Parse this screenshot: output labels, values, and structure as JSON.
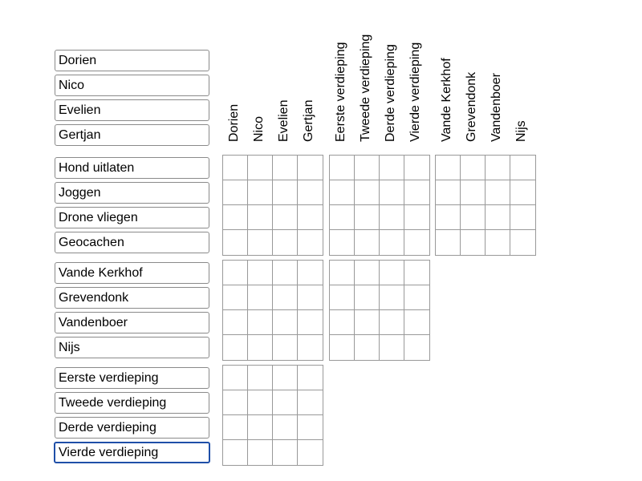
{
  "row_groups": [
    {
      "items": [
        "Dorien",
        "Nico",
        "Evelien",
        "Gertjan"
      ]
    },
    {
      "items": [
        "Hond uitlaten",
        "Joggen",
        "Drone vliegen",
        "Geocachen"
      ]
    },
    {
      "items": [
        "Vande Kerkhof",
        "Grevendonk",
        "Vandenboer",
        "Nijs"
      ]
    },
    {
      "items": [
        "Eerste verdieping",
        "Tweede verdieping",
        "Derde verdieping",
        "Vierde verdieping"
      ]
    }
  ],
  "column_groups": [
    {
      "items": [
        "Dorien",
        "Nico",
        "Evelien",
        "Gertjan"
      ]
    },
    {
      "items": [
        "Eerste verdieping",
        "Tweede verdieping",
        "Derde verdieping",
        "Vierde verdieping"
      ]
    },
    {
      "items": [
        "Vande Kerkhof",
        "Grevendonk",
        "Vandenboer",
        "Nijs"
      ]
    }
  ],
  "focused_input": "Vierde verdieping",
  "colors": {
    "focus_border": "#1f4fa8",
    "grid_line": "#999999"
  }
}
